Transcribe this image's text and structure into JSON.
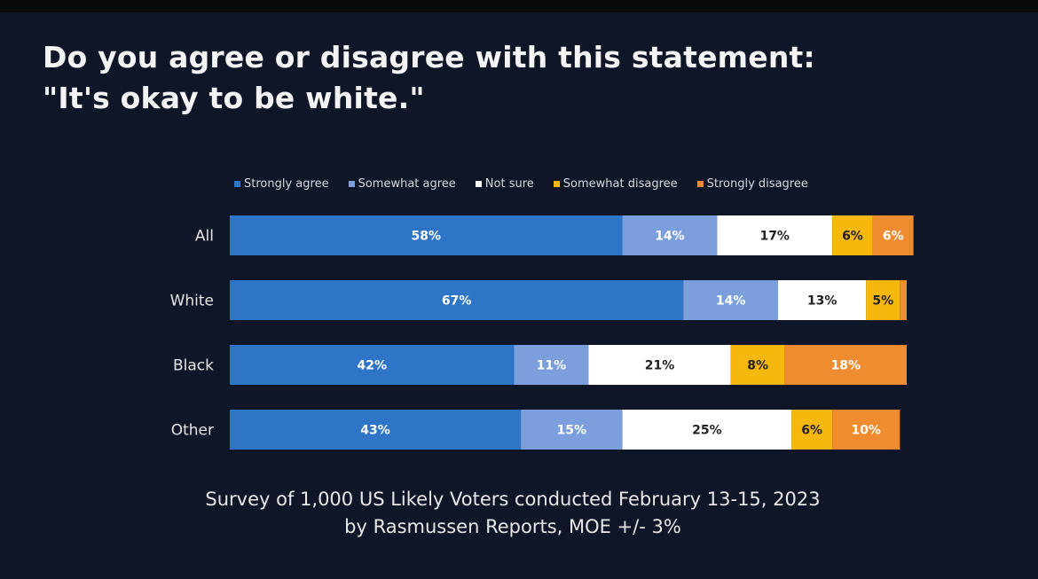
{
  "title": {
    "line1": "Do you agree or disagree with this statement:",
    "line2": "\"It's okay to be white.\""
  },
  "footer": {
    "line1": "Survey of 1,000 US Likely Voters conducted February 13-15, 2023",
    "line2": "by Rasmussen Reports, MOE +/- 3%"
  },
  "colors": {
    "strongly_agree": "#2e75c8",
    "somewhat_agree": "#7b9fdc",
    "not_sure": "#ffffff",
    "somewhat_disagree": "#f6b80c",
    "strongly_disagree": "#f08c30"
  },
  "chart_data": {
    "type": "bar",
    "orientation": "horizontal",
    "stacked": true,
    "title": "Do you agree or disagree with this statement: \"It's okay to be white.\"",
    "categories": [
      "All",
      "White",
      "Black",
      "Other"
    ],
    "series": [
      {
        "name": "Strongly agree",
        "color": "#2e75c8",
        "values": [
          58,
          67,
          42,
          43
        ],
        "labels": [
          "58%",
          "67%",
          "42%",
          "43%"
        ],
        "label_color": "#ffffff"
      },
      {
        "name": "Somewhat agree",
        "color": "#7b9fdc",
        "values": [
          14,
          14,
          11,
          15
        ],
        "labels": [
          "14%",
          "14%",
          "11%",
          "15%"
        ],
        "label_color": "#ffffff"
      },
      {
        "name": "Not sure",
        "color": "#ffffff",
        "values": [
          17,
          13,
          21,
          25
        ],
        "labels": [
          "17%",
          "13%",
          "21%",
          "25%"
        ],
        "label_color": "#222222"
      },
      {
        "name": "Somewhat disagree",
        "color": "#f6b80c",
        "values": [
          6,
          5,
          8,
          6
        ],
        "labels": [
          "6%",
          "5%",
          "8%",
          "6%"
        ],
        "label_color": "#222222"
      },
      {
        "name": "Strongly disagree",
        "color": "#f08c30",
        "values": [
          6,
          1,
          18,
          10
        ],
        "labels": [
          "6%",
          "",
          "18%",
          "10%"
        ],
        "label_color": "#ffffff"
      }
    ],
    "xlim": [
      0,
      100
    ],
    "legend_position": "top",
    "grid": false
  }
}
